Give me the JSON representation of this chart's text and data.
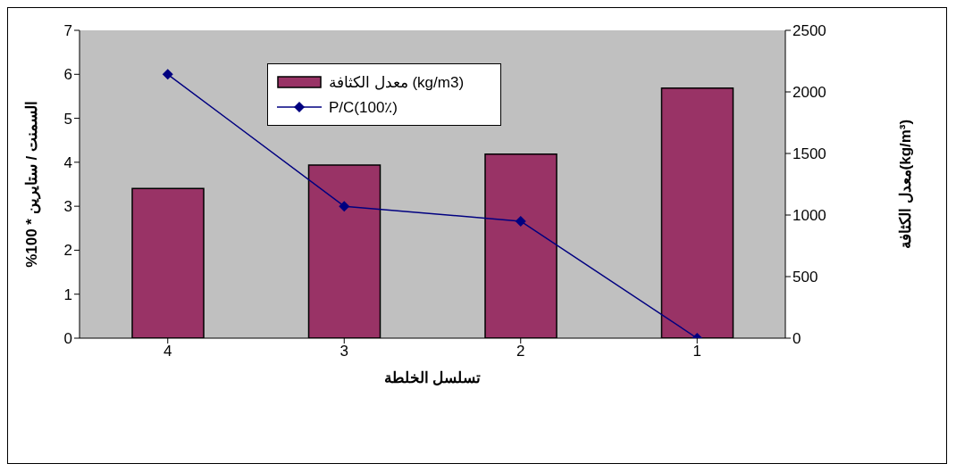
{
  "chart_data": {
    "type": "bar",
    "categories": [
      "4",
      "3",
      "2",
      "1"
    ],
    "series": [
      {
        "name": "معدل الكثافة (kg/m3)",
        "axis": "y2",
        "color": "#993366",
        "values": [
          1215,
          1405,
          1495,
          2030
        ]
      },
      {
        "name": "P/C(100٪)",
        "type": "line",
        "color": "#000080",
        "marker": "diamond",
        "values": [
          6.0,
          3.0,
          2.66,
          0
        ]
      }
    ],
    "xlabel": "تسلسل الخلطة",
    "ylabel": "%100 * السمنت / ستايرين",
    "y2label": "معدل الكثافة(kg/m³)",
    "ylim": [
      0,
      7
    ],
    "yticks": [
      0,
      1,
      2,
      3,
      4,
      5,
      6,
      7
    ],
    "y2lim": [
      0,
      2500
    ],
    "y2ticks": [
      0,
      500,
      1000,
      1500,
      2000,
      2500
    ],
    "legend": "top",
    "grid": false
  }
}
